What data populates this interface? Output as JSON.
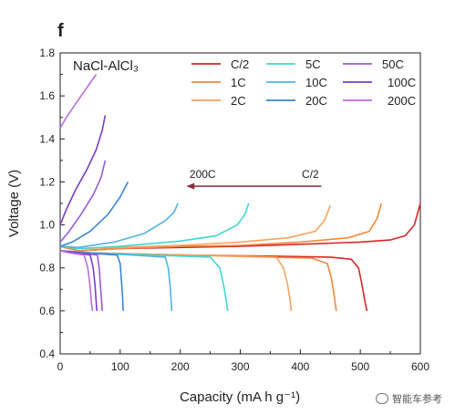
{
  "panel_label": "f",
  "watermark": "智能车参考",
  "chart_data": {
    "type": "line",
    "title": "NaCl-AlCl₃",
    "xlabel": "Capacity (mA h g⁻¹)",
    "ylabel": "Voltage (V)",
    "xlim": [
      0,
      600
    ],
    "ylim": [
      0.4,
      1.8
    ],
    "xticks": [
      "0",
      "100",
      "200",
      "300",
      "400",
      "500",
      "600"
    ],
    "yticks": [
      "0.4",
      "0.6",
      "0.8",
      "1.0",
      "1.2",
      "1.4",
      "1.6",
      "1.8"
    ],
    "grid": false,
    "legend_placement": "top-right",
    "legend": [
      {
        "name": "C/2",
        "color": "#d62728"
      },
      {
        "name": "1C",
        "color": "#f0883e"
      },
      {
        "name": "2C",
        "color": "#f5a35e"
      },
      {
        "name": "5C",
        "color": "#3fd6d6"
      },
      {
        "name": "10C",
        "color": "#4fb3e3"
      },
      {
        "name": "20C",
        "color": "#3a86d1"
      },
      {
        "name": "50C",
        "color": "#9b59d6"
      },
      {
        "name": "100C",
        "color": "#7a3fc4"
      },
      {
        "name": "200C",
        "color": "#b86fe0"
      }
    ],
    "annotation": {
      "from_label": "200C",
      "to_label": "C/2",
      "arrow_color": "#8b2a3a",
      "x_from": 435,
      "x_to": 210,
      "y": 1.18
    },
    "series": [
      {
        "name": "C/2",
        "color": "#d62728",
        "charge": [
          [
            0,
            0.9
          ],
          [
            30,
            0.88
          ],
          [
            100,
            0.89
          ],
          [
            200,
            0.895
          ],
          [
            300,
            0.9
          ],
          [
            400,
            0.91
          ],
          [
            500,
            0.92
          ],
          [
            550,
            0.93
          ],
          [
            575,
            0.95
          ],
          [
            590,
            1.0
          ],
          [
            596,
            1.06
          ],
          [
            600,
            1.1
          ]
        ],
        "discharge": [
          [
            0,
            0.88
          ],
          [
            50,
            0.87
          ],
          [
            200,
            0.86
          ],
          [
            350,
            0.855
          ],
          [
            450,
            0.85
          ],
          [
            485,
            0.84
          ],
          [
            497,
            0.8
          ],
          [
            503,
            0.72
          ],
          [
            508,
            0.64
          ],
          [
            511,
            0.6
          ]
        ]
      },
      {
        "name": "1C",
        "color": "#f0883e",
        "charge": [
          [
            0,
            0.9
          ],
          [
            30,
            0.88
          ],
          [
            100,
            0.89
          ],
          [
            200,
            0.9
          ],
          [
            300,
            0.905
          ],
          [
            400,
            0.92
          ],
          [
            480,
            0.94
          ],
          [
            515,
            0.97
          ],
          [
            528,
            1.03
          ],
          [
            535,
            1.1
          ]
        ],
        "discharge": [
          [
            0,
            0.88
          ],
          [
            50,
            0.87
          ],
          [
            200,
            0.86
          ],
          [
            350,
            0.85
          ],
          [
            420,
            0.845
          ],
          [
            445,
            0.82
          ],
          [
            452,
            0.75
          ],
          [
            457,
            0.66
          ],
          [
            460,
            0.6
          ]
        ]
      },
      {
        "name": "2C",
        "color": "#f5a35e",
        "charge": [
          [
            0,
            0.9
          ],
          [
            30,
            0.89
          ],
          [
            100,
            0.895
          ],
          [
            200,
            0.905
          ],
          [
            300,
            0.92
          ],
          [
            380,
            0.94
          ],
          [
            425,
            0.97
          ],
          [
            440,
            1.02
          ],
          [
            450,
            1.09
          ]
        ],
        "discharge": [
          [
            0,
            0.88
          ],
          [
            50,
            0.87
          ],
          [
            200,
            0.86
          ],
          [
            300,
            0.855
          ],
          [
            360,
            0.85
          ],
          [
            372,
            0.8
          ],
          [
            379,
            0.72
          ],
          [
            383,
            0.65
          ],
          [
            385,
            0.6
          ]
        ]
      },
      {
        "name": "5C",
        "color": "#3fd6d6",
        "charge": [
          [
            0,
            0.9
          ],
          [
            30,
            0.89
          ],
          [
            100,
            0.9
          ],
          [
            200,
            0.925
          ],
          [
            260,
            0.95
          ],
          [
            295,
            1.0
          ],
          [
            308,
            1.05
          ],
          [
            314,
            1.1
          ]
        ],
        "discharge": [
          [
            0,
            0.88
          ],
          [
            50,
            0.87
          ],
          [
            150,
            0.86
          ],
          [
            250,
            0.85
          ],
          [
            266,
            0.8
          ],
          [
            273,
            0.71
          ],
          [
            277,
            0.64
          ],
          [
            279,
            0.6
          ]
        ]
      },
      {
        "name": "10C",
        "color": "#4fb3e3",
        "charge": [
          [
            0,
            0.9
          ],
          [
            30,
            0.895
          ],
          [
            90,
            0.92
          ],
          [
            140,
            0.96
          ],
          [
            175,
            1.02
          ],
          [
            190,
            1.06
          ],
          [
            196,
            1.1
          ]
        ],
        "discharge": [
          [
            0,
            0.88
          ],
          [
            50,
            0.87
          ],
          [
            120,
            0.86
          ],
          [
            175,
            0.85
          ],
          [
            180,
            0.8
          ],
          [
            183,
            0.72
          ],
          [
            185,
            0.64
          ],
          [
            186,
            0.6
          ]
        ]
      },
      {
        "name": "20C",
        "color": "#3a86d1",
        "charge": [
          [
            0,
            0.9
          ],
          [
            20,
            0.92
          ],
          [
            50,
            0.97
          ],
          [
            80,
            1.05
          ],
          [
            100,
            1.13
          ],
          [
            113,
            1.2
          ]
        ],
        "discharge": [
          [
            0,
            0.88
          ],
          [
            40,
            0.87
          ],
          [
            95,
            0.86
          ],
          [
            100,
            0.82
          ],
          [
            102,
            0.74
          ],
          [
            104,
            0.66
          ],
          [
            105,
            0.6
          ]
        ]
      },
      {
        "name": "50C",
        "color": "#9b59d6",
        "charge": [
          [
            0,
            0.92
          ],
          [
            15,
            0.97
          ],
          [
            35,
            1.05
          ],
          [
            55,
            1.14
          ],
          [
            68,
            1.22
          ],
          [
            75,
            1.3
          ]
        ],
        "discharge": [
          [
            0,
            0.88
          ],
          [
            30,
            0.87
          ],
          [
            62,
            0.86
          ],
          [
            65,
            0.8
          ],
          [
            67,
            0.72
          ],
          [
            69,
            0.65
          ],
          [
            70,
            0.6
          ]
        ]
      },
      {
        "name": "100C",
        "color": "#7a3fc4",
        "charge": [
          [
            0,
            1.0
          ],
          [
            10,
            1.07
          ],
          [
            25,
            1.16
          ],
          [
            45,
            1.26
          ],
          [
            60,
            1.35
          ],
          [
            70,
            1.44
          ],
          [
            75,
            1.51
          ]
        ],
        "discharge": [
          [
            0,
            0.88
          ],
          [
            25,
            0.87
          ],
          [
            50,
            0.86
          ],
          [
            55,
            0.8
          ],
          [
            58,
            0.72
          ],
          [
            60,
            0.64
          ],
          [
            61,
            0.6
          ]
        ]
      },
      {
        "name": "200C",
        "color": "#b86fe0",
        "charge": [
          [
            0,
            1.45
          ],
          [
            8,
            1.49
          ],
          [
            20,
            1.54
          ],
          [
            35,
            1.6
          ],
          [
            50,
            1.66
          ],
          [
            60,
            1.7
          ]
        ],
        "discharge": [
          [
            0,
            0.88
          ],
          [
            15,
            0.87
          ],
          [
            40,
            0.86
          ],
          [
            46,
            0.8
          ],
          [
            50,
            0.71
          ],
          [
            52,
            0.64
          ],
          [
            54,
            0.6
          ]
        ]
      }
    ]
  }
}
